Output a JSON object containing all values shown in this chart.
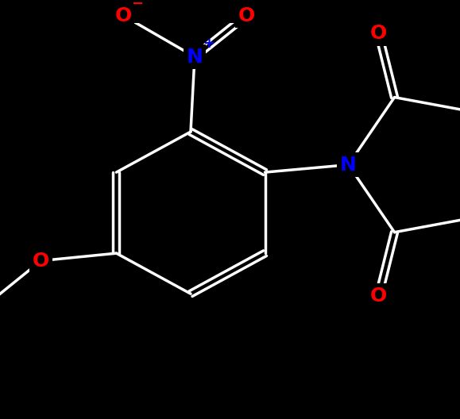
{
  "background_color": "#000000",
  "bond_color": "#ffffff",
  "atom_colors": {
    "O": "#ff0000",
    "N": "#0000ff",
    "C": "#ffffff"
  },
  "figsize": [
    5.79,
    5.28
  ],
  "dpi": 100,
  "bond_width": 2.5,
  "font_size_atom": 18
}
